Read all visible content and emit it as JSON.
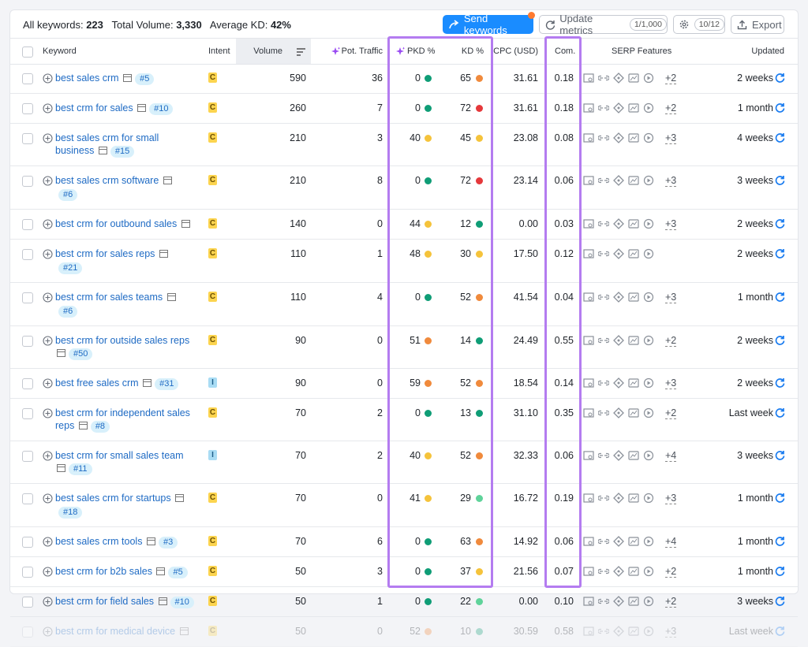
{
  "header": {
    "all_keywords_label": "All keywords:",
    "all_keywords": "223",
    "total_volume_label": "Total Volume:",
    "total_volume": "3,330",
    "avg_kd_label": "Average KD:",
    "avg_kd": "42%",
    "send_button": "Send keywords",
    "update_button": "Update metrics",
    "update_quota": "1/1,000",
    "settings_quota": "10/12",
    "export_button": "Export"
  },
  "table": {
    "columns": [
      "Keyword",
      "Intent",
      "Volume",
      "Pot. Traffic",
      "PKD %",
      "KD %",
      "CPC (USD)",
      "Com.",
      "SERP Features",
      "Updated"
    ],
    "rows": [
      {
        "keyword": "best sales crm",
        "rank": "#5",
        "intent": "C",
        "volume": "590",
        "pot_traffic": "36",
        "pkd": "0",
        "pkd_color": "#0f9d76",
        "kd": "65",
        "kd_color": "#f08a3c",
        "cpc": "31.61",
        "com": "0.18",
        "serp_more": "+2",
        "updated": "2 weeks"
      },
      {
        "keyword": "best crm for sales",
        "rank": "#10",
        "intent": "C",
        "volume": "260",
        "pot_traffic": "7",
        "pkd": "0",
        "pkd_color": "#0f9d76",
        "kd": "72",
        "kd_color": "#e5383b",
        "cpc": "31.61",
        "com": "0.18",
        "serp_more": "+2",
        "updated": "1 month"
      },
      {
        "keyword": "best sales crm for small business",
        "rank": "#15",
        "intent": "C",
        "volume": "210",
        "pot_traffic": "3",
        "pkd": "40",
        "pkd_color": "#f5c33b",
        "kd": "45",
        "kd_color": "#f5c33b",
        "cpc": "23.08",
        "com": "0.08",
        "serp_more": "+3",
        "updated": "4 weeks"
      },
      {
        "keyword": "best sales crm software",
        "rank": "#6",
        "intent": "C",
        "volume": "210",
        "pot_traffic": "8",
        "pkd": "0",
        "pkd_color": "#0f9d76",
        "kd": "72",
        "kd_color": "#e5383b",
        "cpc": "23.14",
        "com": "0.06",
        "serp_more": "+3",
        "updated": "3 weeks"
      },
      {
        "keyword": "best crm for outbound sales",
        "intent": "C",
        "volume": "140",
        "pot_traffic": "0",
        "pkd": "44",
        "pkd_color": "#f5c33b",
        "kd": "12",
        "kd_color": "#0f9d76",
        "cpc": "0.00",
        "com": "0.03",
        "serp_more": "+3",
        "updated": "2 weeks"
      },
      {
        "keyword": "best crm for sales reps",
        "rank": "#21",
        "intent": "C",
        "volume": "110",
        "pot_traffic": "1",
        "pkd": "48",
        "pkd_color": "#f5c33b",
        "kd": "30",
        "kd_color": "#f5c33b",
        "cpc": "17.50",
        "com": "0.12",
        "updated": "2 weeks"
      },
      {
        "keyword": "best crm for sales teams",
        "rank": "#6",
        "intent": "C",
        "volume": "110",
        "pot_traffic": "4",
        "pkd": "0",
        "pkd_color": "#0f9d76",
        "kd": "52",
        "kd_color": "#f08a3c",
        "cpc": "41.54",
        "com": "0.04",
        "serp_more": "+3",
        "updated": "1 month"
      },
      {
        "keyword": "best crm for outside sales reps",
        "rank": "#50",
        "intent": "C",
        "volume": "90",
        "pot_traffic": "0",
        "pkd": "51",
        "pkd_color": "#f08a3c",
        "kd": "14",
        "kd_color": "#0f9d76",
        "cpc": "24.49",
        "com": "0.55",
        "serp_more": "+2",
        "updated": "2 weeks"
      },
      {
        "keyword": "best free sales crm",
        "rank": "#31",
        "intent": "I",
        "volume": "90",
        "pot_traffic": "0",
        "pkd": "59",
        "pkd_color": "#f08a3c",
        "kd": "52",
        "kd_color": "#f08a3c",
        "cpc": "18.54",
        "com": "0.14",
        "serp_more": "+3",
        "updated": "2 weeks"
      },
      {
        "keyword": "best crm for independent sales reps",
        "rank": "#8",
        "intent": "C",
        "volume": "70",
        "pot_traffic": "2",
        "pkd": "0",
        "pkd_color": "#0f9d76",
        "kd": "13",
        "kd_color": "#0f9d76",
        "cpc": "31.10",
        "com": "0.35",
        "serp_more": "+2",
        "updated": "Last week"
      },
      {
        "keyword": "best crm for small sales team",
        "rank": "#11",
        "intent": "I",
        "volume": "70",
        "pot_traffic": "2",
        "pkd": "40",
        "pkd_color": "#f5c33b",
        "kd": "52",
        "kd_color": "#f08a3c",
        "cpc": "32.33",
        "com": "0.06",
        "serp_more": "+4",
        "updated": "3 weeks"
      },
      {
        "keyword": "best sales crm for startups",
        "rank": "#18",
        "intent": "C",
        "volume": "70",
        "pot_traffic": "0",
        "pkd": "41",
        "pkd_color": "#f5c33b",
        "kd": "29",
        "kd_color": "#5fd39a",
        "cpc": "16.72",
        "com": "0.19",
        "serp_more": "+3",
        "updated": "1 month"
      },
      {
        "keyword": "best sales crm tools",
        "rank": "#3",
        "intent": "C",
        "volume": "70",
        "pot_traffic": "6",
        "pkd": "0",
        "pkd_color": "#0f9d76",
        "kd": "63",
        "kd_color": "#f08a3c",
        "cpc": "14.92",
        "com": "0.06",
        "serp_more": "+4",
        "updated": "1 month"
      },
      {
        "keyword": "best crm for b2b sales",
        "rank": "#5",
        "intent": "C",
        "volume": "50",
        "pot_traffic": "3",
        "pkd": "0",
        "pkd_color": "#0f9d76",
        "kd": "37",
        "kd_color": "#f5c33b",
        "cpc": "21.56",
        "com": "0.07",
        "serp_more": "+2",
        "updated": "1 month"
      },
      {
        "keyword": "best crm for field sales",
        "rank": "#10",
        "intent": "C",
        "volume": "50",
        "pot_traffic": "1",
        "pkd": "0",
        "pkd_color": "#0f9d76",
        "kd": "22",
        "kd_color": "#5fd39a",
        "cpc": "0.00",
        "com": "0.10",
        "serp_more": "+2",
        "updated": "3 weeks"
      },
      {
        "keyword": "best crm for medical device",
        "intent": "C",
        "volume": "50",
        "pot_traffic": "0",
        "pkd": "52",
        "pkd_color": "#f08a3c",
        "kd": "10",
        "kd_color": "#0f9d76",
        "cpc": "30.59",
        "com": "0.58",
        "serp_more": "+3",
        "updated": "Last week"
      }
    ]
  }
}
